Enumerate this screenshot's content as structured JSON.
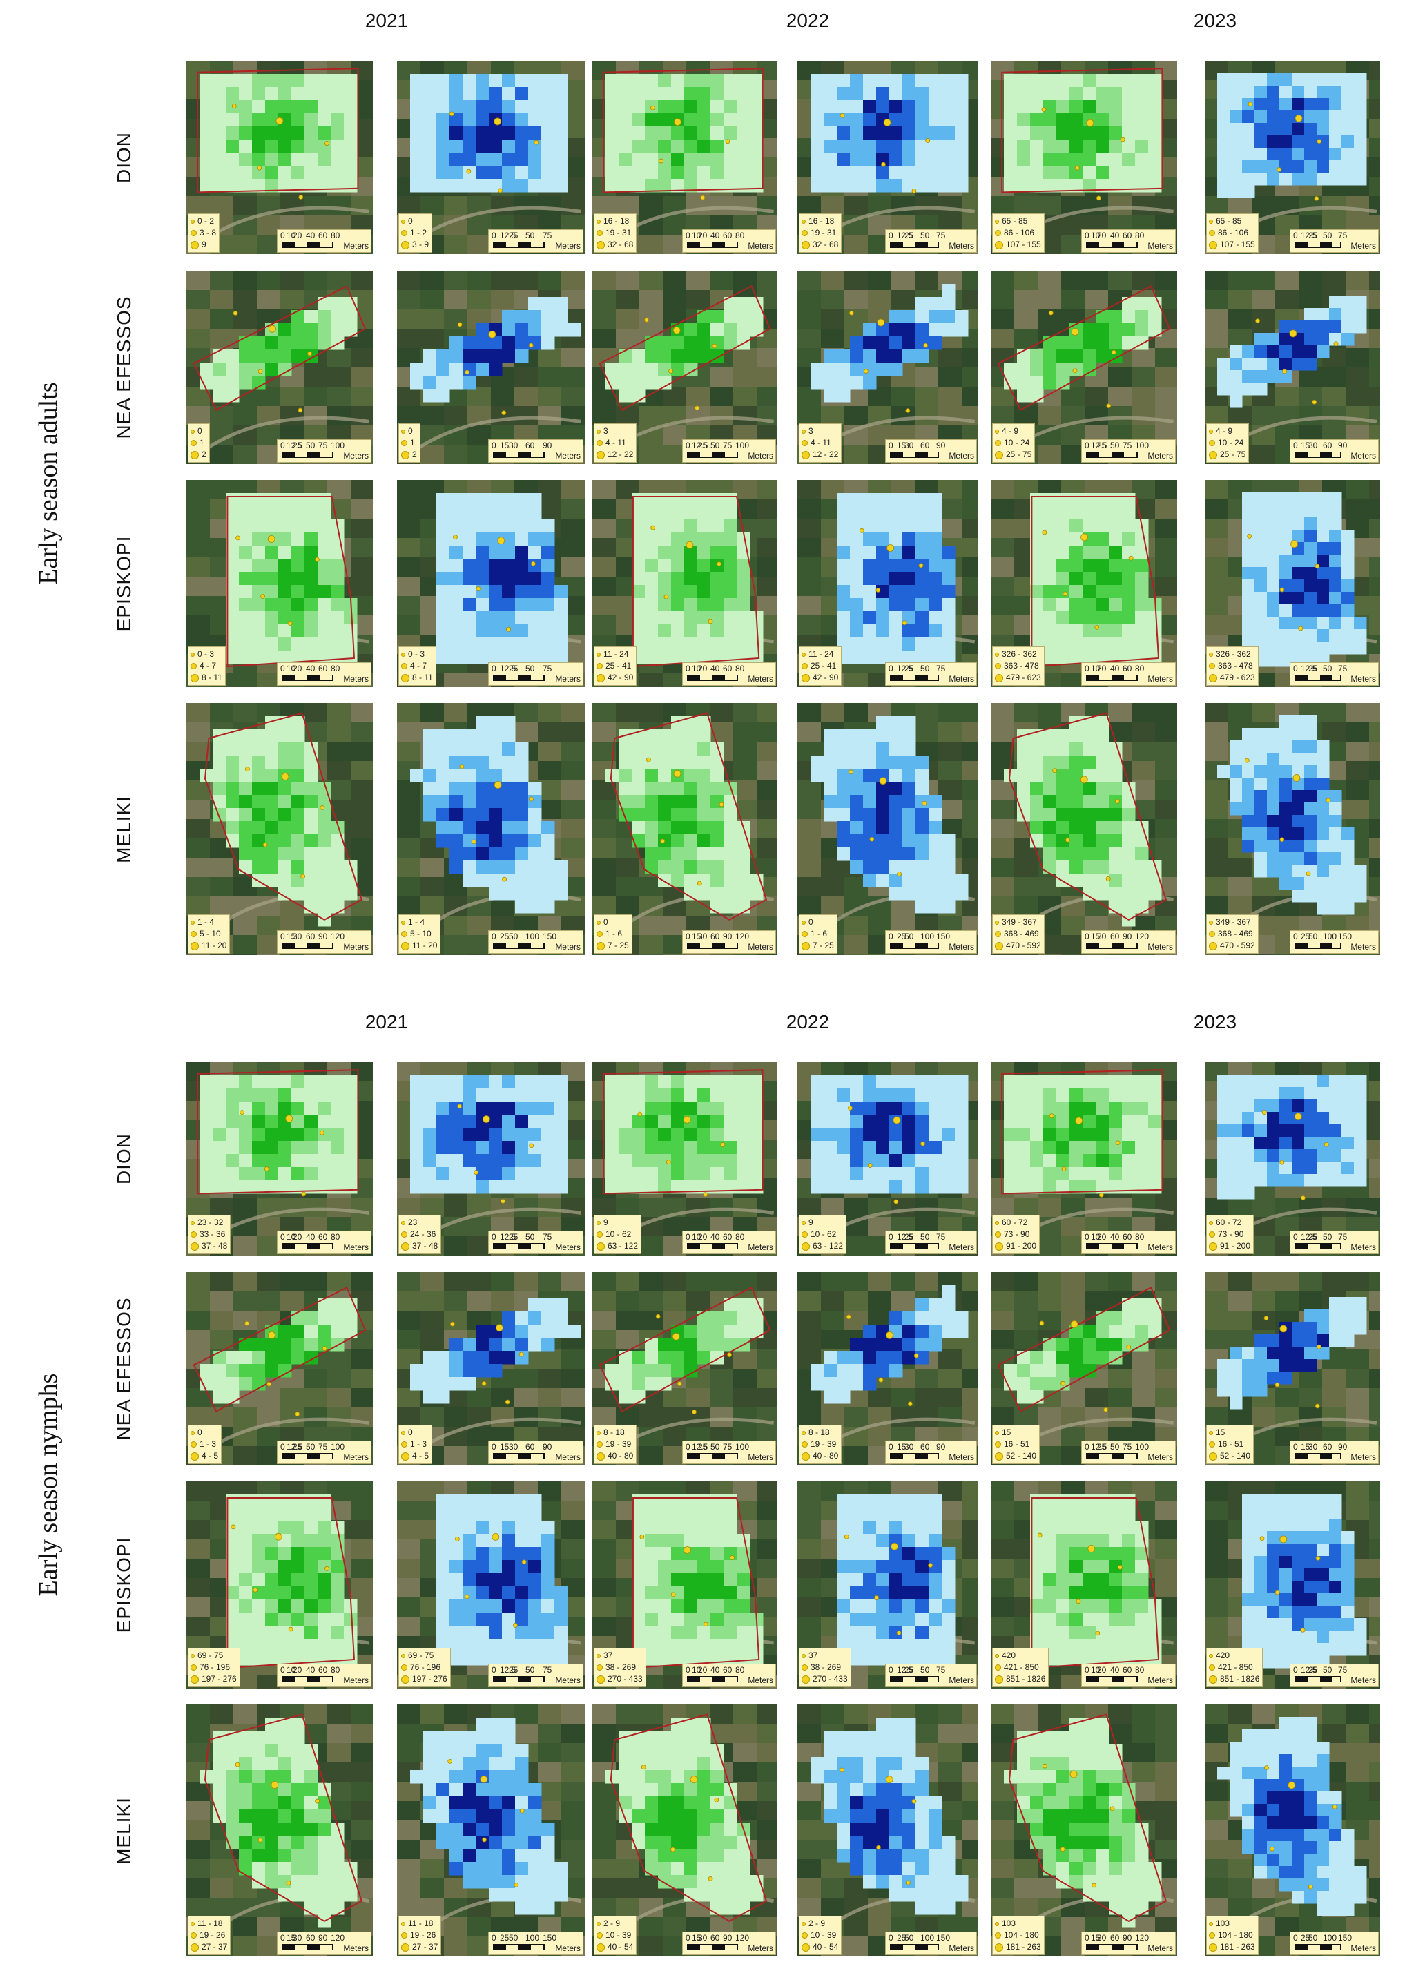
{
  "years": [
    "2021",
    "2022",
    "2023"
  ],
  "units": "Meters",
  "colors": {
    "green_ramp": [
      "#c9f3c4",
      "#8fe08a",
      "#4ccf49",
      "#1ab31c"
    ],
    "blue_ramp": [
      "#bfe9f7",
      "#5db6ee",
      "#2064d8",
      "#0b1a8a"
    ],
    "boundary": "#b22222",
    "trap_point": "#f2d21c",
    "legend_bg": "#fdf6c3"
  },
  "groups": [
    {
      "label": "Early season adults",
      "sites": [
        {
          "name": "DION",
          "scale": [
            [
              "0",
              "10",
              "20",
              "40",
              "60",
              "80"
            ],
            [
              "0",
              "12.5",
              "25",
              "50",
              "75"
            ],
            [
              "0",
              "10",
              "20",
              "40",
              "60",
              "80"
            ],
            [
              "0",
              "12.5",
              "25",
              "50",
              "75"
            ],
            [
              "0",
              "10",
              "20",
              "40",
              "60",
              "80"
            ],
            [
              "0",
              "12.5",
              "25",
              "50",
              "75"
            ]
          ],
          "legends": [
            [
              "0 - 2",
              "3 - 8",
              "9"
            ],
            [
              "0",
              "1 - 2",
              "3 - 9"
            ],
            [
              "16 - 18",
              "19 - 31",
              "32 - 68"
            ],
            [
              "16 - 18",
              "19 - 31",
              "32 - 68"
            ],
            [
              "65 - 85",
              "86 - 106",
              "107 - 155"
            ],
            [
              "65 - 85",
              "86 - 106",
              "107 - 155"
            ]
          ]
        },
        {
          "name": "NEA EFESSOS",
          "scale": [
            [
              "0",
              "12.5",
              "25",
              "50",
              "75",
              "100"
            ],
            [
              "0",
              "15",
              "30",
              "60",
              "90"
            ],
            [
              "0",
              "12.5",
              "25",
              "50",
              "75",
              "100"
            ],
            [
              "0",
              "15",
              "30",
              "60",
              "90"
            ],
            [
              "0",
              "12.5",
              "25",
              "50",
              "75",
              "100"
            ],
            [
              "0",
              "15",
              "30",
              "60",
              "90"
            ]
          ],
          "legends": [
            [
              "0",
              "1",
              "2"
            ],
            [
              "0",
              "1",
              "2"
            ],
            [
              "3",
              "4 - 11",
              "12 - 22"
            ],
            [
              "3",
              "4 - 11",
              "12 - 22"
            ],
            [
              "4 - 9",
              "10 - 24",
              "25 - 75"
            ],
            [
              "4 - 9",
              "10 - 24",
              "25 - 75"
            ]
          ]
        },
        {
          "name": "EPISKOPI",
          "scale": [
            [
              "0",
              "10",
              "20",
              "40",
              "60",
              "80"
            ],
            [
              "0",
              "12.5",
              "25",
              "50",
              "75"
            ],
            [
              "0",
              "10",
              "20",
              "40",
              "60",
              "80"
            ],
            [
              "0",
              "12.5",
              "25",
              "50",
              "75"
            ],
            [
              "0",
              "10",
              "20",
              "40",
              "60",
              "80"
            ],
            [
              "0",
              "12.5",
              "25",
              "50",
              "75"
            ]
          ],
          "legends": [
            [
              "0 - 3",
              "4 - 7",
              "8 - 11"
            ],
            [
              "0 - 3",
              "4 - 7",
              "8 - 11"
            ],
            [
              "11 - 24",
              "25 - 41",
              "42 - 90"
            ],
            [
              "11 - 24",
              "25 - 41",
              "42 - 90"
            ],
            [
              "326 - 362",
              "363 - 478",
              "479 - 623"
            ],
            [
              "326 - 362",
              "363 - 478",
              "479 - 623"
            ]
          ]
        },
        {
          "name": "MELIKI",
          "scale": [
            [
              "0",
              "15",
              "30",
              "60",
              "90",
              "120"
            ],
            [
              "0",
              "25",
              "50",
              "100",
              "150"
            ],
            [
              "0",
              "15",
              "30",
              "60",
              "90",
              "120"
            ],
            [
              "0",
              "25",
              "50",
              "100",
              "150"
            ],
            [
              "0",
              "15",
              "30",
              "60",
              "90",
              "120"
            ],
            [
              "0",
              "25",
              "50",
              "100",
              "150"
            ]
          ],
          "legends": [
            [
              "1 - 4",
              "5 - 10",
              "11 - 20"
            ],
            [
              "1 - 4",
              "5 - 10",
              "11 - 20"
            ],
            [
              "0",
              "1 - 6",
              "7 - 25"
            ],
            [
              "0",
              "1 - 6",
              "7 - 25"
            ],
            [
              "349 - 367",
              "368 - 469",
              "470 - 592"
            ],
            [
              "349 - 367",
              "368 - 469",
              "470 - 592"
            ]
          ]
        }
      ]
    },
    {
      "label": "Early season nymphs",
      "sites": [
        {
          "name": "DION",
          "scale": [
            [
              "0",
              "10",
              "20",
              "40",
              "60",
              "80"
            ],
            [
              "0",
              "12.5",
              "25",
              "50",
              "75"
            ],
            [
              "0",
              "10",
              "20",
              "40",
              "60",
              "80"
            ],
            [
              "0",
              "12.5",
              "25",
              "50",
              "75"
            ],
            [
              "0",
              "10",
              "20",
              "40",
              "60",
              "80"
            ],
            [
              "0",
              "12.5",
              "25",
              "50",
              "75"
            ]
          ],
          "legends": [
            [
              "23 - 32",
              "33 - 36",
              "37 - 48"
            ],
            [
              "23",
              "24 - 36",
              "37 - 48"
            ],
            [
              "9",
              "10 - 62",
              "63 - 122"
            ],
            [
              "9",
              "10 - 62",
              "63 - 122"
            ],
            [
              "60 - 72",
              "73 - 90",
              "91 - 200"
            ],
            [
              "60 - 72",
              "73 - 90",
              "91 - 200"
            ]
          ]
        },
        {
          "name": "NEA EFESSOS",
          "scale": [
            [
              "0",
              "12.5",
              "25",
              "50",
              "75",
              "100"
            ],
            [
              "0",
              "15",
              "30",
              "60",
              "90"
            ],
            [
              "0",
              "12.5",
              "25",
              "50",
              "75",
              "100"
            ],
            [
              "0",
              "15",
              "30",
              "60",
              "90"
            ],
            [
              "0",
              "12.5",
              "25",
              "50",
              "75",
              "100"
            ],
            [
              "0",
              "15",
              "30",
              "60",
              "90"
            ]
          ],
          "legends": [
            [
              "0",
              "1 - 3",
              "4 - 5"
            ],
            [
              "0",
              "1 - 3",
              "4 - 5"
            ],
            [
              "8 - 18",
              "19 - 39",
              "40 - 80"
            ],
            [
              "8 - 18",
              "19 - 39",
              "40 - 80"
            ],
            [
              "15",
              "16 - 51",
              "52 - 140"
            ],
            [
              "15",
              "16 - 51",
              "52 - 140"
            ]
          ]
        },
        {
          "name": "EPISKOPI",
          "scale": [
            [
              "0",
              "10",
              "20",
              "40",
              "60",
              "80"
            ],
            [
              "0",
              "12.5",
              "25",
              "50",
              "75"
            ],
            [
              "0",
              "10",
              "20",
              "40",
              "60",
              "80"
            ],
            [
              "0",
              "12.5",
              "25",
              "50",
              "75"
            ],
            [
              "0",
              "10",
              "20",
              "40",
              "60",
              "80"
            ],
            [
              "0",
              "12.5",
              "25",
              "50",
              "75"
            ]
          ],
          "legends": [
            [
              "69 - 75",
              "76 - 196",
              "197 - 276"
            ],
            [
              "69 - 75",
              "76 - 196",
              "197 - 276"
            ],
            [
              "37",
              "38 - 269",
              "270 - 433"
            ],
            [
              "37",
              "38 - 269",
              "270 - 433"
            ],
            [
              "420",
              "421 - 850",
              "851 - 1826"
            ],
            [
              "420",
              "421 - 850",
              "851 - 1826"
            ]
          ]
        },
        {
          "name": "MELIKI",
          "scale": [
            [
              "0",
              "15",
              "30",
              "60",
              "90",
              "120"
            ],
            [
              "0",
              "25",
              "50",
              "100",
              "150"
            ],
            [
              "0",
              "15",
              "30",
              "60",
              "90",
              "120"
            ],
            [
              "0",
              "25",
              "50",
              "100",
              "150"
            ],
            [
              "0",
              "15",
              "30",
              "60",
              "90",
              "120"
            ],
            [
              "0",
              "25",
              "50",
              "100",
              "150"
            ]
          ],
          "legends": [
            [
              "11 - 18",
              "19 - 26",
              "27 - 37"
            ],
            [
              "11 - 18",
              "19 - 26",
              "27 - 37"
            ],
            [
              "2 - 9",
              "10 - 39",
              "40 - 54"
            ],
            [
              "2 - 9",
              "10 - 39",
              "40 - 54"
            ],
            [
              "103",
              "104 - 180",
              "181 - 263"
            ],
            [
              "103",
              "104 - 180",
              "181 - 263"
            ]
          ]
        }
      ]
    }
  ]
}
